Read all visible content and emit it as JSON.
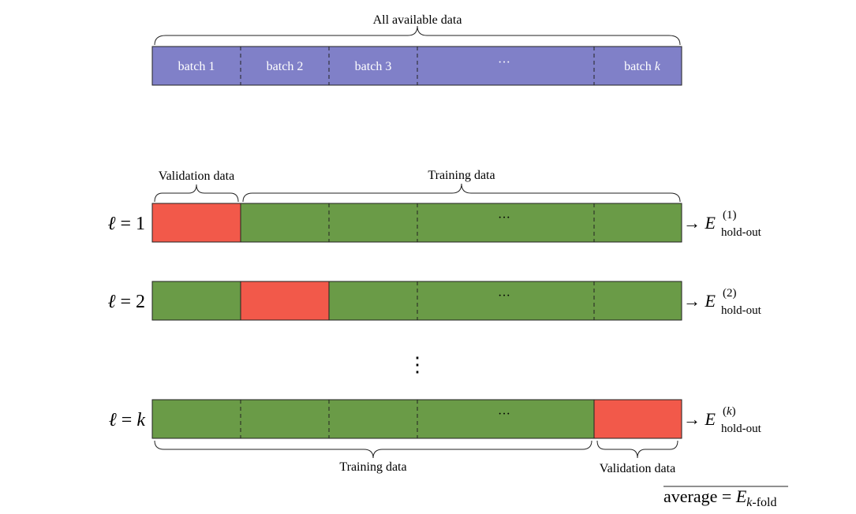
{
  "top": {
    "label": "All available data",
    "batches": [
      "batch 1",
      "batch 2",
      "batch 3",
      "···",
      "batch"
    ],
    "batch_k_var": "k"
  },
  "rows": [
    {
      "ell_symbol": "ℓ",
      "eq": "=",
      "value": "1",
      "arrow": "→",
      "E": "E",
      "superscript": "(1)",
      "subscript": "hold-out",
      "validation_index": 0
    },
    {
      "ell_symbol": "ℓ",
      "eq": "=",
      "value": "2",
      "arrow": "→",
      "E": "E",
      "superscript": "(2)",
      "subscript": "hold-out",
      "validation_index": 1
    },
    {
      "ell_symbol": "ℓ",
      "eq": "=",
      "value": "k",
      "arrow": "→",
      "E": "E",
      "superscript": "(k)",
      "subscript": "hold-out",
      "validation_index": 4
    }
  ],
  "dots_in_bar": "···",
  "vertical_dots": "⋮",
  "row1_labels": {
    "validation": "Validation data",
    "training": "Training data"
  },
  "rowk_labels": {
    "training": "Training data",
    "validation": "Validation data"
  },
  "average": {
    "text": "average",
    "eq": "=",
    "E": "E",
    "subscript": "k-fold"
  },
  "colors": {
    "batch": "#8080c8",
    "training": "#6a9b47",
    "validation": "#f2594a",
    "outline": "#222222"
  }
}
